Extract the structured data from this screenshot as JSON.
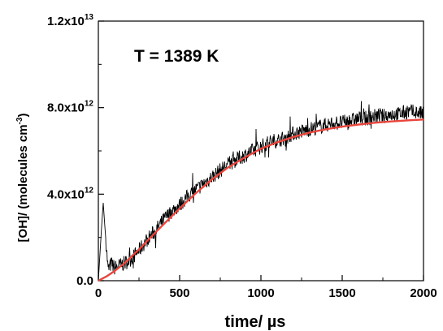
{
  "chart_data": {
    "type": "line",
    "annotation": "T = 1389 K",
    "xlabel": "time/ µs",
    "ylabel_main": "[OH]/ (molecules cm",
    "ylabel_exp": "-3",
    "ylabel_close": ")",
    "xlim": [
      0,
      2000
    ],
    "ylim": [
      0,
      12000000000000.0
    ],
    "x_ticks": [
      {
        "value": 0,
        "label": "0"
      },
      {
        "value": 500,
        "label": "500"
      },
      {
        "value": 1000,
        "label": "1000"
      },
      {
        "value": 1500,
        "label": "1500"
      },
      {
        "value": 2000,
        "label": "2000"
      }
    ],
    "y_ticks": [
      {
        "value": 0,
        "mantissa": "0.0",
        "exp": ""
      },
      {
        "value": 4000000000000.0,
        "mantissa": "4.0x10",
        "exp": "12"
      },
      {
        "value": 8000000000000.0,
        "mantissa": "8.0x10",
        "exp": "12"
      },
      {
        "value": 12000000000000.0,
        "mantissa": "1.2x10",
        "exp": "13"
      }
    ],
    "grid": false,
    "series": [
      {
        "role": "measured",
        "color": "#000000",
        "x": [
          0,
          20,
          30,
          40,
          60,
          80,
          100,
          130,
          160,
          200,
          250,
          300,
          350,
          400,
          450,
          500,
          550,
          600,
          650,
          700,
          750,
          800,
          850,
          900,
          950,
          1000,
          1050,
          1100,
          1150,
          1200,
          1250,
          1300,
          1350,
          1400,
          1450,
          1500,
          1550,
          1600,
          1650,
          1700,
          1750,
          1800,
          1850,
          1900,
          1950,
          2000
        ],
        "y": [
          0,
          2500000000000.0,
          3600000000000.0,
          2500000000000.0,
          500000000000.0,
          800000000000.0,
          600000000000.0,
          700000000000.0,
          800000000000.0,
          1000000000000.0,
          1400000000000.0,
          1900000000000.0,
          2300000000000.0,
          2800000000000.0,
          3200000000000.0,
          3500000000000.0,
          3900000000000.0,
          4200000000000.0,
          4500000000000.0,
          4800000000000.0,
          5100000000000.0,
          5400000000000.0,
          5600000000000.0,
          5800000000000.0,
          6000000000000.0,
          6200000000000.0,
          6400000000000.0,
          6500000000000.0,
          6600000000000.0,
          6800000000000.0,
          6900000000000.0,
          7000000000000.0,
          7100000000000.0,
          7200000000000.0,
          7300000000000.0,
          7300000000000.0,
          7400000000000.0,
          7500000000000.0,
          7500000000000.0,
          7600000000000.0,
          7600000000000.0,
          7700000000000.0,
          7700000000000.0,
          7800000000000.0,
          7800000000000.0,
          7700000000000.0
        ]
      },
      {
        "role": "fit",
        "color": "#e8453c",
        "x": [
          0,
          50,
          100,
          150,
          200,
          250,
          300,
          400,
          500,
          600,
          700,
          800,
          900,
          1000,
          1100,
          1200,
          1300,
          1400,
          1500,
          1600,
          1700,
          1800,
          1900,
          2000
        ],
        "y": [
          0,
          200000000000.0,
          450000000000.0,
          750000000000.0,
          1100000000000.0,
          1450000000000.0,
          1850000000000.0,
          2600000000000.0,
          3350000000000.0,
          4050000000000.0,
          4700000000000.0,
          5250000000000.0,
          5700000000000.0,
          6100000000000.0,
          6400000000000.0,
          6650000000000.0,
          6850000000000.0,
          7000000000000.0,
          7120000000000.0,
          7220000000000.0,
          7300000000000.0,
          7360000000000.0,
          7410000000000.0,
          7450000000000.0
        ]
      }
    ]
  }
}
